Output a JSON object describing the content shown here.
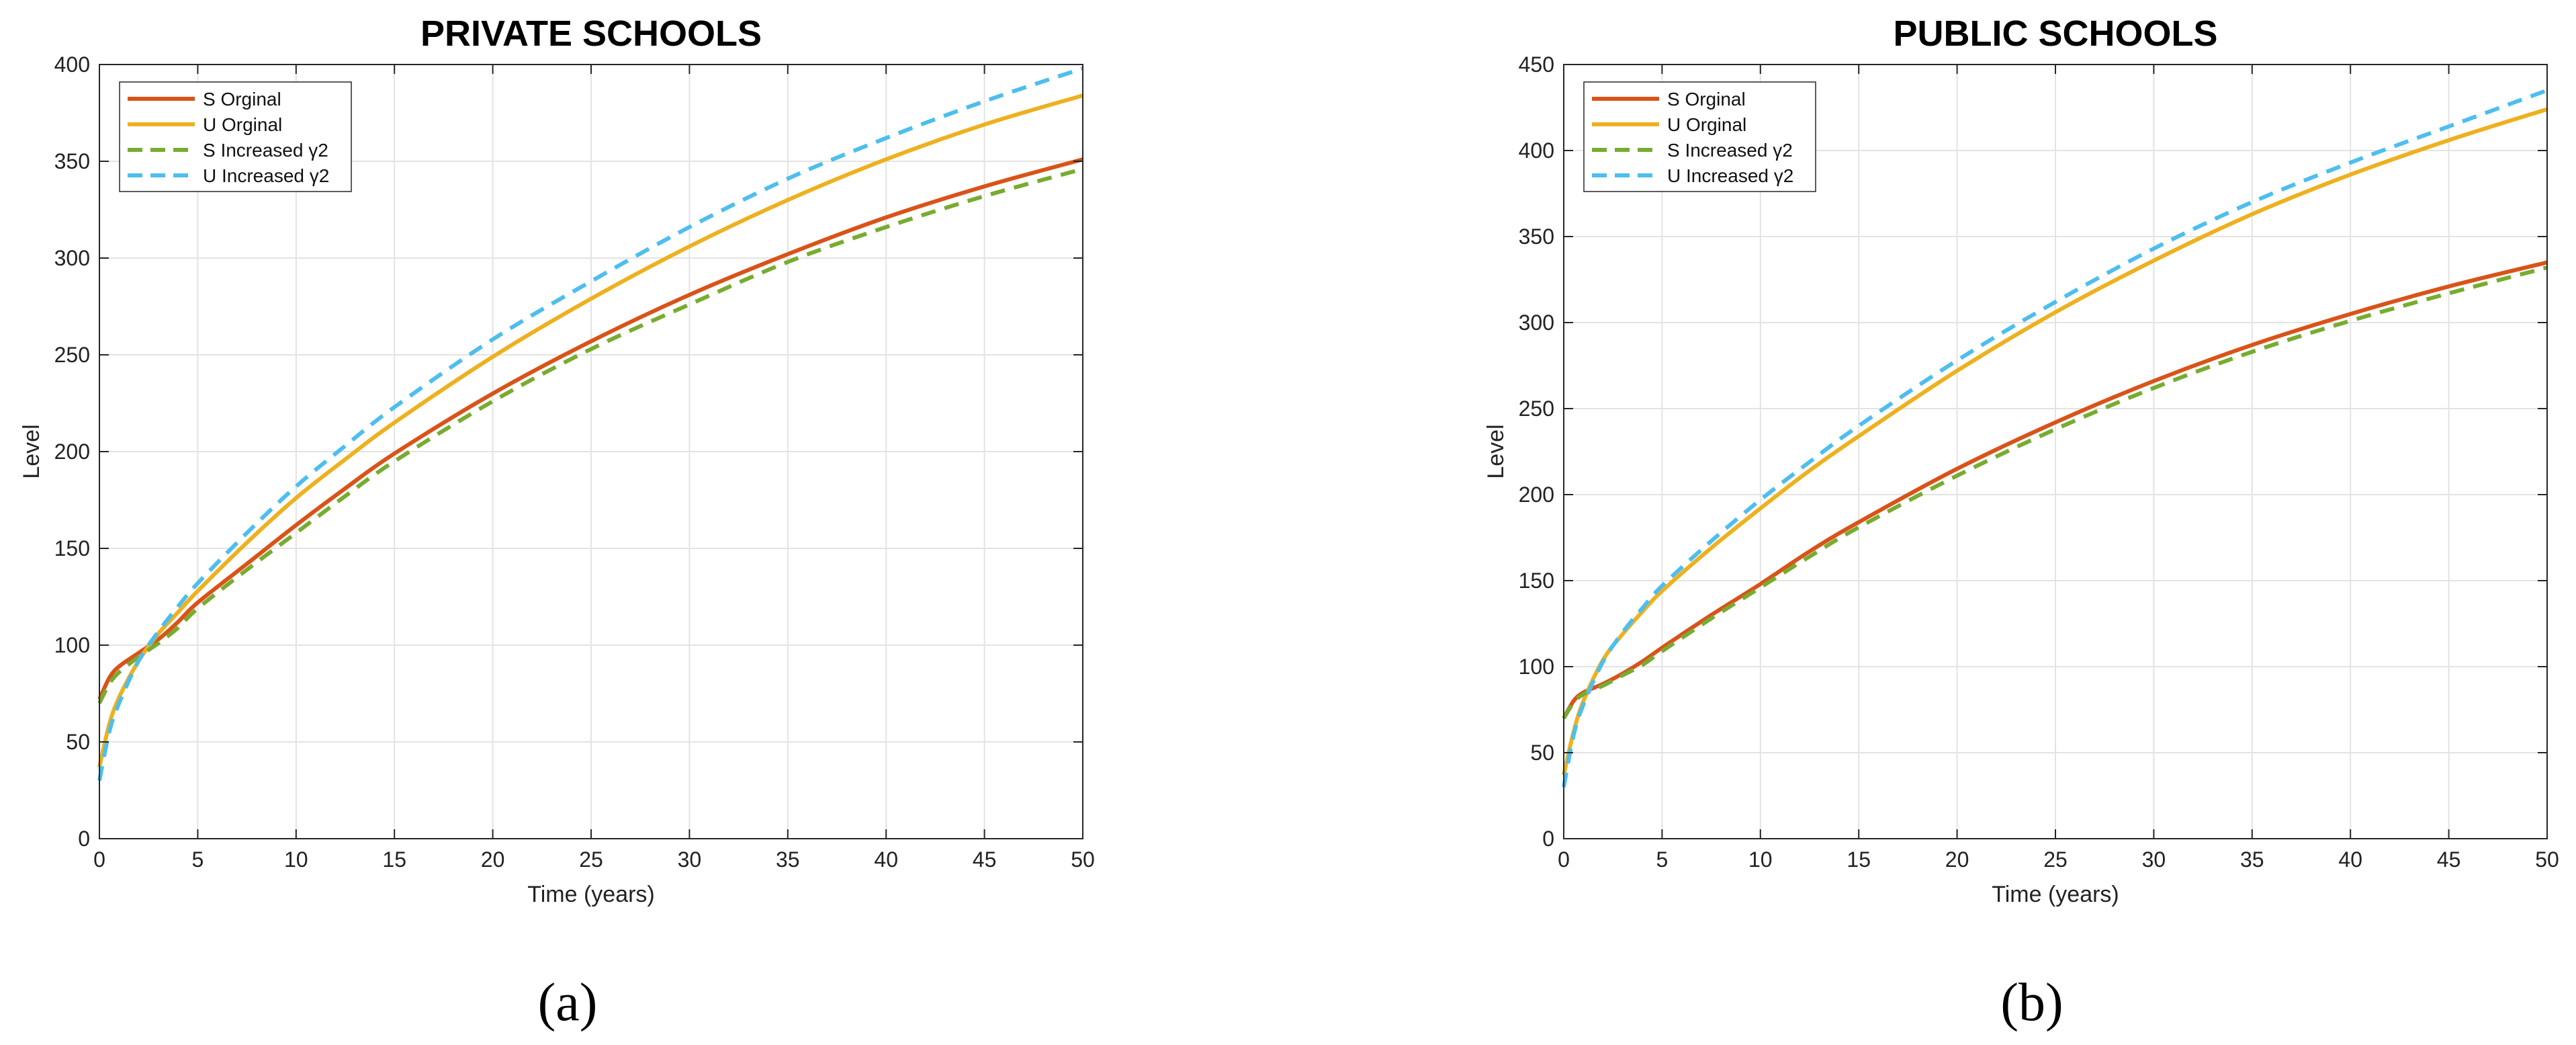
{
  "colors": {
    "s_original": "#d95319",
    "u_original": "#edb120",
    "s_increased": "#77ac30",
    "u_increased": "#4dbeee",
    "grid": "#e3e3e3",
    "axis": "#262626"
  },
  "chart_data": [
    {
      "type": "line",
      "title": "PRIVATE SCHOOLS",
      "xlabel": "Time (years)",
      "ylabel": "Level",
      "xlim": [
        0,
        50
      ],
      "ylim": [
        0,
        400
      ],
      "xticks": [
        0,
        5,
        10,
        15,
        20,
        25,
        30,
        35,
        40,
        45,
        50
      ],
      "yticks": [
        0,
        50,
        100,
        150,
        200,
        250,
        300,
        350,
        400
      ],
      "grid": true,
      "legend_position": "top-left",
      "caption": "(a)",
      "x": [
        0,
        0.5,
        1,
        2,
        3,
        4,
        5,
        7.5,
        10,
        12.5,
        15,
        20,
        25,
        30,
        35,
        40,
        45,
        50
      ],
      "series": [
        {
          "name": "S Orginal",
          "style": "solid",
          "values": [
            72,
            83,
            89,
            96,
            103,
            112,
            122,
            142,
            162,
            181,
            199,
            230,
            257,
            281,
            302,
            321,
            337,
            351
          ]
        },
        {
          "name": "U Orginal",
          "style": "solid",
          "values": [
            37,
            59,
            73,
            92,
            106,
            117,
            128,
            153,
            176,
            196,
            215,
            249,
            279,
            306,
            330,
            351,
            369,
            384
          ]
        },
        {
          "name": "S Increased γ2",
          "style": "dashed",
          "values": [
            70,
            80,
            86,
            94,
            101,
            109,
            119,
            139,
            158,
            177,
            195,
            226,
            253,
            276,
            298,
            316,
            332,
            346
          ]
        },
        {
          "name": "U Increased γ2",
          "style": "dashed",
          "values": [
            30,
            55,
            70,
            92,
            107,
            120,
            132,
            158,
            182,
            203,
            223,
            258,
            288,
            316,
            341,
            362,
            381,
            398
          ]
        }
      ]
    },
    {
      "type": "line",
      "title": "PUBLIC SCHOOLS",
      "xlabel": "Time (years)",
      "ylabel": "Level",
      "xlim": [
        0,
        50
      ],
      "ylim": [
        0,
        450
      ],
      "xticks": [
        0,
        5,
        10,
        15,
        20,
        25,
        30,
        35,
        40,
        45,
        50
      ],
      "yticks": [
        0,
        50,
        100,
        150,
        200,
        250,
        300,
        350,
        400,
        450
      ],
      "grid": true,
      "legend_position": "top-left",
      "caption": "(b)",
      "x": [
        0,
        0.5,
        1,
        2,
        3,
        4,
        5,
        7.5,
        10,
        12.5,
        15,
        20,
        25,
        30,
        35,
        40,
        45,
        50
      ],
      "series": [
        {
          "name": "S Orginal",
          "style": "solid",
          "values": [
            70,
            80,
            85,
            90,
            96,
            103,
            111,
            130,
            148,
            167,
            184,
            215,
            242,
            266,
            287,
            305,
            321,
            335
          ]
        },
        {
          "name": "U Orginal",
          "style": "solid",
          "values": [
            37,
            62,
            80,
            104,
            119,
            132,
            144,
            169,
            192,
            214,
            234,
            272,
            306,
            336,
            363,
            386,
            406,
            424
          ]
        },
        {
          "name": "S Increased γ2",
          "style": "dashed",
          "values": [
            70,
            79,
            84,
            89,
            95,
            101,
            109,
            128,
            146,
            164,
            181,
            211,
            238,
            262,
            283,
            301,
            317,
            332
          ]
        },
        {
          "name": "U Increased γ2",
          "style": "dashed",
          "values": [
            30,
            60,
            78,
            103,
            120,
            134,
            147,
            173,
            197,
            219,
            240,
            278,
            312,
            343,
            370,
            393,
            414,
            435
          ]
        }
      ]
    }
  ]
}
